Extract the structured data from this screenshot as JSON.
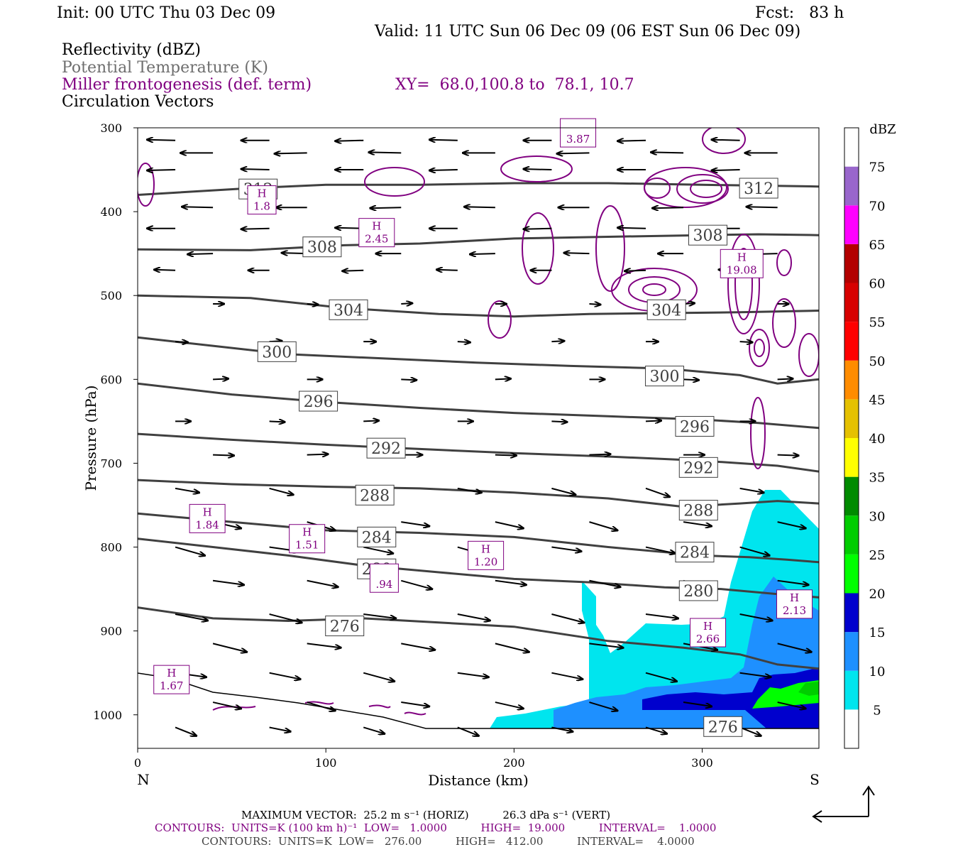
{
  "header": {
    "init": "Init: 00 UTC Thu 03 Dec 09",
    "fcst": "Fcst:   83 h",
    "valid": "Valid: 11 UTC Sun 06 Dec 09 (06 EST Sun 06 Dec 09)"
  },
  "legend": {
    "line1": "Reflectivity (dBZ)",
    "line2": "Potential Temperature (K)",
    "line3": "Miller frontogenesis (def. term)",
    "xy": "XY=  68.0,100.8 to  78.1, 10.7",
    "line4": "Circulation Vectors"
  },
  "footer": {
    "max_vector": "MAXIMUM VECTOR:  25.2 m s⁻¹ (HORIZ)          26.3 dPa s⁻¹ (VERT)",
    "contours_front": "CONTOURS:  UNITS=K (100 km h)⁻¹  LOW=   1.0000          HIGH=  19.000          INTERVAL=    1.0000",
    "contours_theta": "CONTOURS:  UNITS=K  LOW=   276.00          HIGH=   412.00          INTERVAL=    4.0000"
  },
  "colors": {
    "theta": "#404040",
    "frontogenesis": "#800080",
    "vectors": "#000000"
  },
  "chart_data": {
    "type": "cross-section",
    "xlabel": "Distance (km)",
    "ylabel": "Pressure (hPa)",
    "xlim": [
      0,
      362
    ],
    "ylim": [
      1040,
      300
    ],
    "x_ticks": [
      0,
      100,
      200,
      300
    ],
    "y_ticks": [
      300,
      400,
      500,
      600,
      700,
      800,
      900,
      1000
    ],
    "x_end_labels": {
      "left": "N",
      "right": "S"
    },
    "colorbar": {
      "unit": "dBZ",
      "levels": [
        5,
        10,
        15,
        20,
        25,
        30,
        35,
        40,
        45,
        50,
        55,
        60,
        65,
        70,
        75
      ],
      "colors": [
        "#ffffff",
        "#00e5ee",
        "#1e90ff",
        "#0000cd",
        "#00ff00",
        "#00cd00",
        "#008b00",
        "#ffff00",
        "#e5c100",
        "#ff8c00",
        "#ff0000",
        "#d70000",
        "#b30000",
        "#ff00ff",
        "#9966cc",
        "#ffffff"
      ]
    },
    "theta_contours": [
      {
        "level": 312,
        "points": [
          [
            0,
            380
          ],
          [
            60,
            372
          ],
          [
            100,
            368
          ],
          [
            150,
            368
          ],
          [
            200,
            366
          ],
          [
            250,
            366
          ],
          [
            300,
            368
          ],
          [
            362,
            370
          ]
        ]
      },
      {
        "level": 308,
        "points": [
          [
            0,
            445
          ],
          [
            60,
            446
          ],
          [
            110,
            440
          ],
          [
            150,
            438
          ],
          [
            200,
            432
          ],
          [
            250,
            430
          ],
          [
            300,
            428
          ],
          [
            330,
            427
          ],
          [
            362,
            428
          ]
        ]
      },
      {
        "level": 304,
        "points": [
          [
            0,
            500
          ],
          [
            60,
            503
          ],
          [
            110,
            515
          ],
          [
            160,
            522
          ],
          [
            200,
            525
          ],
          [
            240,
            522
          ],
          [
            280,
            521
          ],
          [
            320,
            520
          ],
          [
            362,
            518
          ]
        ]
      },
      {
        "level": 300,
        "points": [
          [
            0,
            550
          ],
          [
            40,
            560
          ],
          [
            80,
            570
          ],
          [
            130,
            575
          ],
          [
            180,
            580
          ],
          [
            230,
            584
          ],
          [
            280,
            587
          ],
          [
            320,
            595
          ],
          [
            340,
            605
          ],
          [
            362,
            600
          ]
        ]
      },
      {
        "level": 296,
        "points": [
          [
            0,
            605
          ],
          [
            50,
            618
          ],
          [
            100,
            627
          ],
          [
            150,
            634
          ],
          [
            200,
            640
          ],
          [
            250,
            644
          ],
          [
            300,
            648
          ],
          [
            330,
            652
          ],
          [
            362,
            658
          ]
        ]
      },
      {
        "level": 292,
        "points": [
          [
            0,
            665
          ],
          [
            50,
            672
          ],
          [
            100,
            678
          ],
          [
            150,
            683
          ],
          [
            200,
            688
          ],
          [
            250,
            692
          ],
          [
            300,
            697
          ],
          [
            340,
            703
          ],
          [
            362,
            710
          ]
        ]
      },
      {
        "level": 288,
        "points": [
          [
            0,
            720
          ],
          [
            50,
            725
          ],
          [
            100,
            728
          ],
          [
            150,
            730
          ],
          [
            200,
            735
          ],
          [
            250,
            742
          ],
          [
            290,
            752
          ],
          [
            320,
            748
          ],
          [
            340,
            745
          ],
          [
            362,
            748
          ]
        ]
      },
      {
        "level": 284,
        "points": [
          [
            0,
            760
          ],
          [
            50,
            770
          ],
          [
            100,
            780
          ],
          [
            150,
            783
          ],
          [
            200,
            788
          ],
          [
            250,
            800
          ],
          [
            300,
            810
          ],
          [
            325,
            812
          ],
          [
            345,
            815
          ],
          [
            362,
            818
          ]
        ]
      },
      {
        "level": 280,
        "points": [
          [
            0,
            790
          ],
          [
            40,
            800
          ],
          [
            80,
            810
          ],
          [
            120,
            822
          ],
          [
            160,
            830
          ],
          [
            200,
            838
          ],
          [
            240,
            842
          ],
          [
            280,
            848
          ],
          [
            310,
            850
          ],
          [
            340,
            856
          ],
          [
            362,
            860
          ]
        ]
      },
      {
        "level": 276,
        "points": [
          [
            0,
            872
          ],
          [
            40,
            885
          ],
          [
            80,
            888
          ],
          [
            120,
            885
          ],
          [
            160,
            890
          ],
          [
            200,
            895
          ],
          [
            250,
            912
          ],
          [
            290,
            920
          ],
          [
            320,
            928
          ],
          [
            340,
            940
          ],
          [
            362,
            945
          ]
        ]
      }
    ],
    "theta_labels": [
      {
        "label": "312",
        "x": 64,
        "p": 373
      },
      {
        "label": "312",
        "x": 330,
        "p": 372
      },
      {
        "label": "308",
        "x": 98,
        "p": 442
      },
      {
        "label": "308",
        "x": 303,
        "p": 428
      },
      {
        "label": "304",
        "x": 112,
        "p": 517
      },
      {
        "label": "304",
        "x": 281,
        "p": 517
      },
      {
        "label": "300",
        "x": 74,
        "p": 567
      },
      {
        "label": "300",
        "x": 280,
        "p": 596
      },
      {
        "label": "296",
        "x": 96,
        "p": 626
      },
      {
        "label": "296",
        "x": 296,
        "p": 656
      },
      {
        "label": "292",
        "x": 132,
        "p": 682
      },
      {
        "label": "292",
        "x": 298,
        "p": 705
      },
      {
        "label": "288",
        "x": 126,
        "p": 738
      },
      {
        "label": "288",
        "x": 298,
        "p": 756
      },
      {
        "label": "284",
        "x": 127,
        "p": 788
      },
      {
        "label": "284",
        "x": 296,
        "p": 806
      },
      {
        "label": "280",
        "x": 127,
        "p": 826
      },
      {
        "label": "280",
        "x": 298,
        "p": 852
      },
      {
        "label": "276",
        "x": 110,
        "p": 894
      },
      {
        "label": "276",
        "x": 311,
        "p": 1014
      }
    ],
    "frontogenesis_maxima": [
      {
        "label": "H",
        "value": "1.8",
        "x": 66,
        "p": 386
      },
      {
        "label": "H",
        "value": "2.45",
        "x": 127,
        "p": 425
      },
      {
        "label": "H",
        "value": "19.08",
        "x": 321,
        "p": 462
      },
      {
        "label": "H",
        "value": "1.84",
        "x": 37,
        "p": 766
      },
      {
        "label": "H",
        "value": "1.51",
        "x": 90,
        "p": 790
      },
      {
        "label": "H",
        "value": "1.20",
        "x": 185,
        "p": 810
      },
      {
        "label": "H",
        "value": "2.66",
        "x": 303,
        "p": 902
      },
      {
        "label": "H",
        "value": "2.13",
        "x": 349,
        "p": 868
      },
      {
        "label": "H",
        "value": "1.67",
        "x": 18,
        "p": 958
      },
      {
        "label": "",
        "value": "3.87",
        "x": 234,
        "p": 306
      },
      {
        "label": "",
        "value": ".94",
        "x": 131,
        "p": 837
      }
    ]
  }
}
